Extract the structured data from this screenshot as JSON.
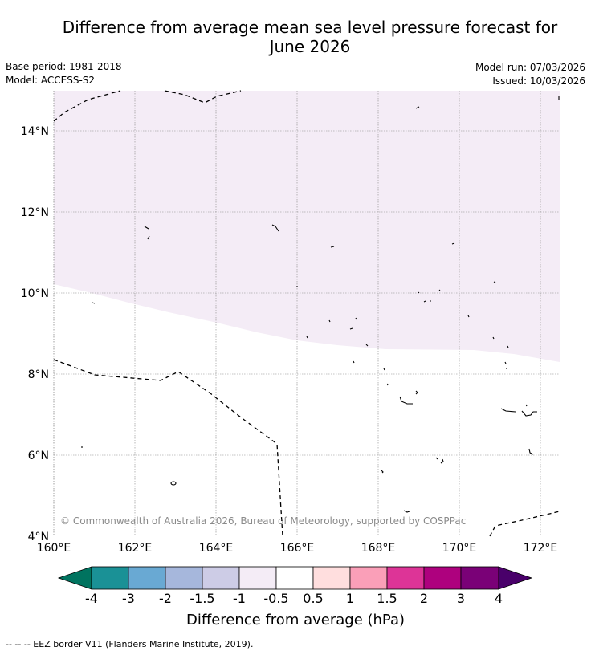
{
  "title_line1": "Difference from average mean sea level pressure forecast for",
  "title_line2": "June 2026",
  "base_period": "Base period: 1981-2018",
  "model": "Model: ACCESS-S2",
  "model_run": "Model run: 07/03/2026",
  "issued": "Issued: 10/03/2026",
  "copyright": "© Commonwealth of Australia 2026, Bureau of Meteorology, supported by COSPPac",
  "footnote": "--  --  -- EEZ border V11 (Flanders Marine Institute, 2019).",
  "map": {
    "lon_labels": [
      "160°E",
      "162°E",
      "164°E",
      "166°E",
      "168°E",
      "170°E",
      "172°E"
    ],
    "lat_labels": [
      "14°N",
      "12°N",
      "10°N",
      "8°N",
      "6°N",
      "4°N"
    ],
    "shaded_region_color": "#f4ecf6",
    "shaded_region_class": "-1 to -0.5 hPa"
  },
  "colorbar": {
    "title": "Difference from average (hPa)",
    "tick_labels": [
      "-4",
      "-3",
      "-2",
      "-1.5",
      "-1",
      "-0.5",
      "0.5",
      "1",
      "1.5",
      "2",
      "3",
      "4"
    ],
    "colors": {
      "below_min": "#00735f",
      "c1": "#1a9196",
      "c2": "#69a9d3",
      "c3": "#a6b7dc",
      "c4": "#cdcce6",
      "c5": "#f4ecf6",
      "c6": "#ffffff",
      "c7": "#ffdede",
      "c8": "#fa9fb8",
      "c9": "#dd3497",
      "c10": "#ae017e",
      "c11": "#7a0177",
      "above_max": "#49006a"
    }
  }
}
